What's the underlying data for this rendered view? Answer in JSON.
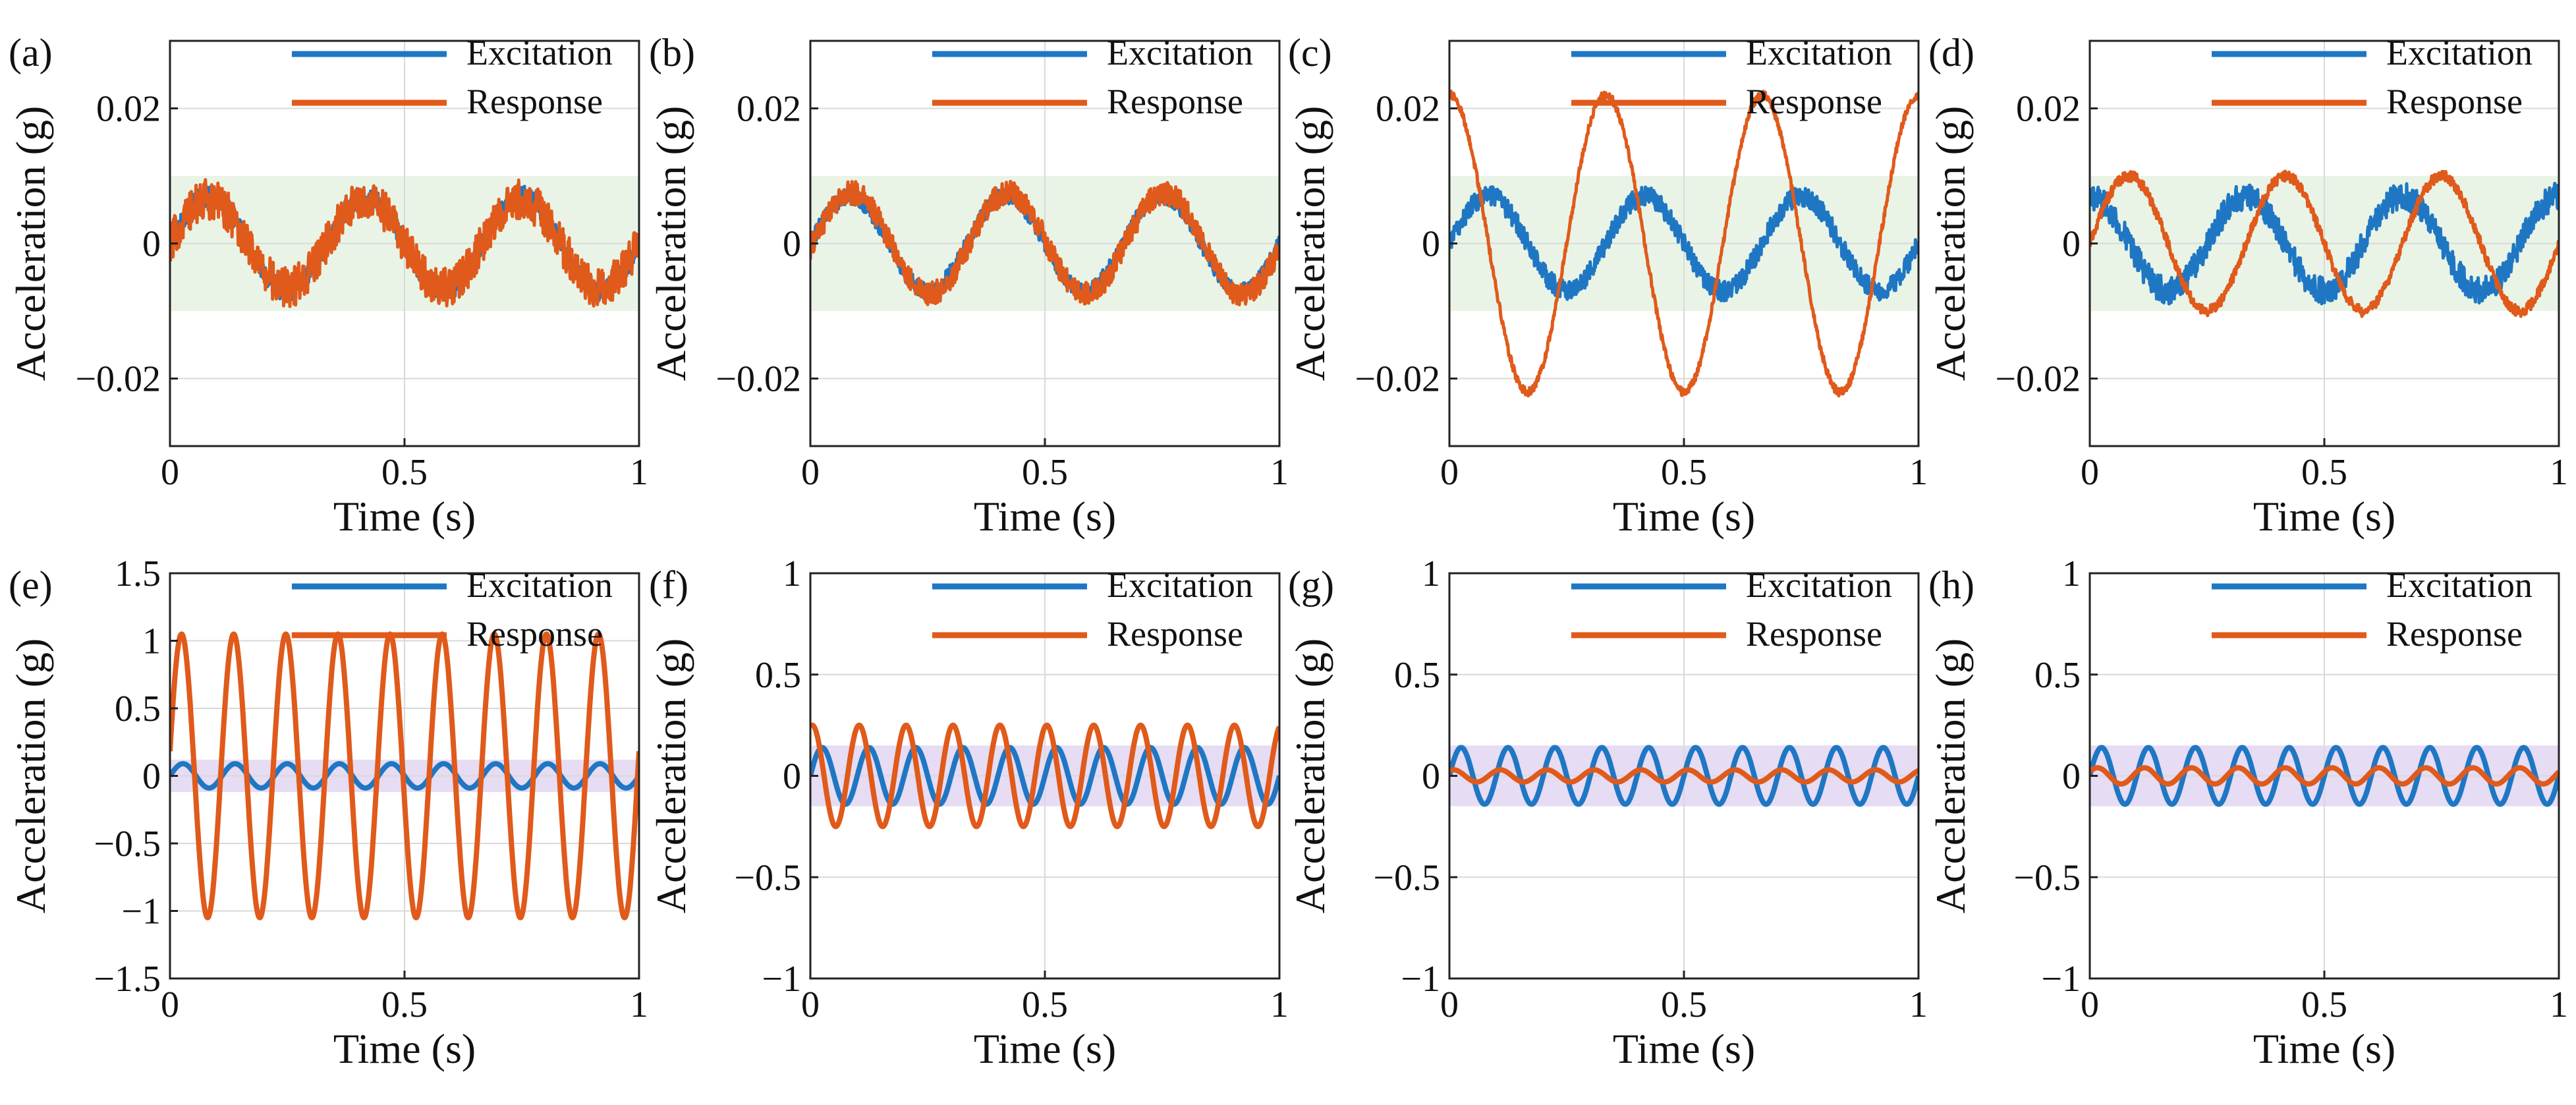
{
  "figure": {
    "type": "multi-panel time-series figure"
  },
  "colors": {
    "excitation": "#1f77c4",
    "response": "#e05a1b",
    "band_low_freq": "#e9f4e6",
    "band_high_freq": "#e6dcf3",
    "grid": "#d9d9d9",
    "axis": "#222222"
  },
  "chart_data": [
    {
      "panel": "(a)",
      "type": "line",
      "xlabel": "Time (s)",
      "ylabel": "Acceleration (g)",
      "xlim": [
        0,
        1
      ],
      "ylim": [
        -0.03,
        0.03
      ],
      "xticks": [
        0,
        0.5,
        1
      ],
      "xtick_labels": [
        "0",
        "0.5",
        "1"
      ],
      "yticks": [
        -0.02,
        0,
        0.02
      ],
      "ytick_labels": [
        "−0.02",
        "0",
        "0.02"
      ],
      "band": [
        -0.01,
        0.01
      ],
      "band_color": "low",
      "legend": [
        "Excitation",
        "Response"
      ],
      "legend_position": "top-right",
      "series": [
        {
          "name": "Excitation",
          "freq_hz": 3,
          "amplitude": 0.007,
          "phase_deg": 0,
          "noise": 0.0015
        },
        {
          "name": "Response",
          "freq_hz": 3,
          "amplitude": 0.0065,
          "phase_deg": 0,
          "noise": 0.003
        }
      ]
    },
    {
      "panel": "(b)",
      "type": "line",
      "xlabel": "Time (s)",
      "ylabel": "Acceleration (g)",
      "xlim": [
        0,
        1
      ],
      "ylim": [
        -0.03,
        0.03
      ],
      "xticks": [
        0,
        0.5,
        1
      ],
      "xtick_labels": [
        "0",
        "0.5",
        "1"
      ],
      "yticks": [
        -0.02,
        0,
        0.02
      ],
      "ytick_labels": [
        "−0.02",
        "0",
        "0.02"
      ],
      "band": [
        -0.01,
        0.01
      ],
      "band_color": "low",
      "legend": [
        "Excitation",
        "Response"
      ],
      "legend_position": "top-right",
      "series": [
        {
          "name": "Excitation",
          "freq_hz": 3,
          "amplitude": 0.007,
          "phase_deg": 0,
          "noise": 0.0012
        },
        {
          "name": "Response",
          "freq_hz": 3,
          "amplitude": 0.0075,
          "phase_deg": -5,
          "noise": 0.0018
        }
      ]
    },
    {
      "panel": "(c)",
      "type": "line",
      "xlabel": "Time (s)",
      "ylabel": "Acceleration (g)",
      "xlim": [
        0,
        1
      ],
      "ylim": [
        -0.03,
        0.03
      ],
      "xticks": [
        0,
        0.5,
        1
      ],
      "xtick_labels": [
        "0",
        "0.5",
        "1"
      ],
      "yticks": [
        -0.02,
        0,
        0.02
      ],
      "ytick_labels": [
        "−0.02",
        "0",
        "0.02"
      ],
      "band": [
        -0.01,
        0.01
      ],
      "band_color": "low",
      "legend": [
        "Excitation",
        "Response"
      ],
      "legend_position": "top-right",
      "series": [
        {
          "name": "Excitation",
          "freq_hz": 3,
          "amplitude": 0.007,
          "phase_deg": 0,
          "noise": 0.0015
        },
        {
          "name": "Response",
          "freq_hz": 3,
          "amplitude": 0.022,
          "phase_deg": 90,
          "noise": 0.0006
        }
      ]
    },
    {
      "panel": "(d)",
      "type": "line",
      "xlabel": "Time (s)",
      "ylabel": "Acceleration (g)",
      "xlim": [
        0,
        1
      ],
      "ylim": [
        -0.03,
        0.03
      ],
      "xticks": [
        0,
        0.5,
        1
      ],
      "xtick_labels": [
        "0",
        "0.5",
        "1"
      ],
      "yticks": [
        -0.02,
        0,
        0.02
      ],
      "ytick_labels": [
        "−0.02",
        "0",
        "0.02"
      ],
      "band": [
        -0.01,
        0.01
      ],
      "band_color": "low",
      "legend": [
        "Excitation",
        "Response"
      ],
      "legend_position": "top-right",
      "series": [
        {
          "name": "Excitation",
          "freq_hz": 3,
          "amplitude": 0.007,
          "phase_deg": 90,
          "noise": 0.002
        },
        {
          "name": "Response",
          "freq_hz": 3,
          "amplitude": 0.01,
          "phase_deg": 0,
          "noise": 0.0008
        }
      ]
    },
    {
      "panel": "(e)",
      "type": "line",
      "xlabel": "Time (s)",
      "ylabel": "Acceleration (g)",
      "xlim": [
        0,
        1
      ],
      "ylim": [
        -1.5,
        1.5
      ],
      "xticks": [
        0,
        0.5,
        1
      ],
      "xtick_labels": [
        "0",
        "0.5",
        "1"
      ],
      "yticks": [
        -1.5,
        -1,
        -0.5,
        0,
        0.5,
        1,
        1.5
      ],
      "ytick_labels": [
        "−1.5",
        "−1",
        "−0.5",
        "0",
        "0.5",
        "1",
        "1.5"
      ],
      "band": [
        -0.12,
        0.12
      ],
      "band_color": "high",
      "legend": [
        "Excitation",
        "Response"
      ],
      "legend_position": "top-right",
      "series": [
        {
          "name": "Excitation",
          "freq_hz": 9,
          "amplitude": 0.09,
          "phase_deg": 0,
          "noise": 0
        },
        {
          "name": "Response",
          "freq_hz": 9,
          "amplitude": 1.05,
          "phase_deg": 10,
          "noise": 0
        }
      ]
    },
    {
      "panel": "(f)",
      "type": "line",
      "xlabel": "Time (s)",
      "ylabel": "Acceleration (g)",
      "xlim": [
        0,
        1
      ],
      "ylim": [
        -1,
        1
      ],
      "xticks": [
        0,
        0.5,
        1
      ],
      "xtick_labels": [
        "0",
        "0.5",
        "1"
      ],
      "yticks": [
        -1,
        -0.5,
        0,
        0.5,
        1
      ],
      "ytick_labels": [
        "−1",
        "−0.5",
        "0",
        "0.5",
        "1"
      ],
      "band": [
        -0.15,
        0.15
      ],
      "band_color": "high",
      "legend": [
        "Excitation",
        "Response"
      ],
      "legend_position": "top-right",
      "series": [
        {
          "name": "Excitation",
          "freq_hz": 10,
          "amplitude": 0.14,
          "phase_deg": 0,
          "noise": 0
        },
        {
          "name": "Response",
          "freq_hz": 10,
          "amplitude": 0.25,
          "phase_deg": 75,
          "noise": 0
        }
      ]
    },
    {
      "panel": "(g)",
      "type": "line",
      "xlabel": "Time (s)",
      "ylabel": "Acceleration (g)",
      "xlim": [
        0,
        1
      ],
      "ylim": [
        -1,
        1
      ],
      "xticks": [
        0,
        0.5,
        1
      ],
      "xtick_labels": [
        "0",
        "0.5",
        "1"
      ],
      "yticks": [
        -1,
        -0.5,
        0,
        0.5,
        1
      ],
      "ytick_labels": [
        "−1",
        "−0.5",
        "0",
        "0.5",
        "1"
      ],
      "band": [
        -0.15,
        0.15
      ],
      "band_color": "high",
      "legend": [
        "Excitation",
        "Response"
      ],
      "legend_position": "top-right",
      "series": [
        {
          "name": "Excitation",
          "freq_hz": 10,
          "amplitude": 0.14,
          "phase_deg": 0,
          "noise": 0
        },
        {
          "name": "Response",
          "freq_hz": 10,
          "amplitude": 0.03,
          "phase_deg": 60,
          "noise": 0
        }
      ]
    },
    {
      "panel": "(h)",
      "type": "line",
      "xlabel": "Time (s)",
      "ylabel": "Acceleration (g)",
      "xlim": [
        0,
        1
      ],
      "ylim": [
        -1,
        1
      ],
      "xticks": [
        0,
        0.5,
        1
      ],
      "xtick_labels": [
        "0",
        "0.5",
        "1"
      ],
      "yticks": [
        -1,
        -0.5,
        0,
        0.5,
        1
      ],
      "ytick_labels": [
        "−1",
        "−0.5",
        "0",
        "0.5",
        "1"
      ],
      "band": [
        -0.15,
        0.15
      ],
      "band_color": "high",
      "legend": [
        "Excitation",
        "Response"
      ],
      "legend_position": "top-right",
      "series": [
        {
          "name": "Excitation",
          "freq_hz": 10,
          "amplitude": 0.14,
          "phase_deg": 0,
          "noise": 0
        },
        {
          "name": "Response",
          "freq_hz": 10,
          "amplitude": 0.04,
          "phase_deg": 30,
          "noise": 0
        }
      ]
    }
  ]
}
